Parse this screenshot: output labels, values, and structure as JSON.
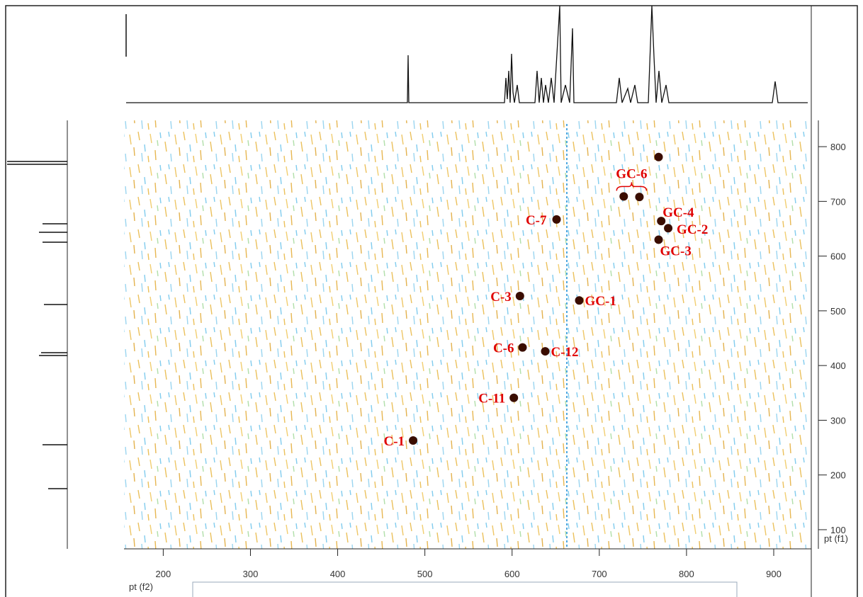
{
  "chart_data": {
    "type": "scatter",
    "x_label": "pt (f2)",
    "y_label": "pt (f1)",
    "xlim": [
      155,
      939
    ],
    "ylim": [
      65,
      848
    ],
    "xticks": [
      200,
      300,
      400,
      500,
      600,
      700,
      800,
      900
    ],
    "yticks": [
      100,
      200,
      300,
      400,
      500,
      600,
      700,
      800
    ],
    "series": [
      {
        "color": "#3a0d00",
        "x": [
          486.5,
          602,
          612,
          638,
          609,
          677,
          651,
          728,
          746,
          771,
          779,
          768,
          768
        ],
        "values": [
          263,
          341,
          433,
          426,
          527,
          519,
          667,
          709,
          708,
          664,
          651,
          630,
          781
        ],
        "point_labels": [
          "C-1",
          "C-11",
          "C-6",
          "C-12",
          "C-3",
          "GC-1",
          "C-7",
          null,
          null,
          "GC-4",
          "GC-2",
          "GC-3",
          null
        ]
      }
    ],
    "bracket_label": "GC-6"
  }
}
